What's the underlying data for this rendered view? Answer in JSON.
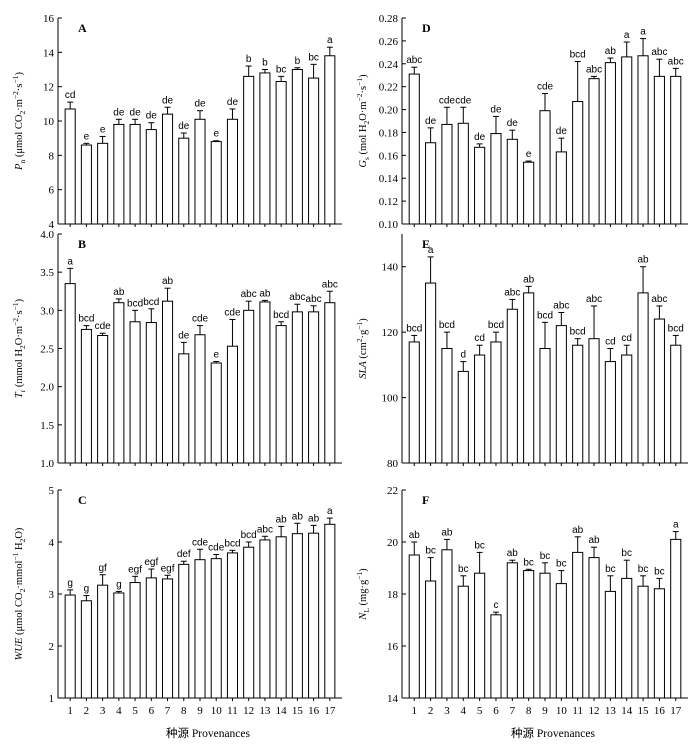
{
  "x_axis_label": "种源 Provenances",
  "chart_data": [
    {
      "id": "A",
      "panel_label": "A",
      "type": "bar",
      "ylabel": "P_n (μmol CO₂·m⁻²·s⁻¹)",
      "ylim": [
        4,
        16
      ],
      "yticks": [
        "4",
        "6",
        "8",
        "10",
        "12",
        "14",
        "16"
      ],
      "categories": [
        "1",
        "2",
        "3",
        "4",
        "5",
        "6",
        "7",
        "8",
        "9",
        "10",
        "11",
        "12",
        "13",
        "14",
        "15",
        "16",
        "17"
      ],
      "values": [
        10.7,
        8.6,
        8.7,
        9.8,
        9.8,
        9.5,
        10.4,
        9.0,
        10.1,
        8.8,
        10.1,
        12.6,
        12.8,
        12.3,
        13.0,
        12.5,
        13.8
      ],
      "errors": [
        0.4,
        0.1,
        0.4,
        0.3,
        0.3,
        0.4,
        0.4,
        0.3,
        0.5,
        0.05,
        0.6,
        0.6,
        0.2,
        0.3,
        0.1,
        0.8,
        0.5
      ],
      "letters": [
        "cd",
        "e",
        "e",
        "de",
        "de",
        "de",
        "de",
        "de",
        "de",
        "e",
        "de",
        "b",
        "b",
        "bc",
        "b",
        "bc",
        "a"
      ]
    },
    {
      "id": "B",
      "panel_label": "B",
      "type": "bar",
      "ylabel": "T_r (mmol H₂O·m⁻²·s⁻¹)",
      "ylim": [
        1.0,
        4.0
      ],
      "yticks": [
        "1.0",
        "1.5",
        "2.0",
        "2.5",
        "3.0",
        "3.5",
        "4.0"
      ],
      "categories": [
        "1",
        "2",
        "3",
        "4",
        "5",
        "6",
        "7",
        "8",
        "9",
        "10",
        "11",
        "12",
        "13",
        "14",
        "15",
        "16",
        "17"
      ],
      "values": [
        3.35,
        2.75,
        2.67,
        3.1,
        2.85,
        2.84,
        3.12,
        2.43,
        2.68,
        2.31,
        2.53,
        3.0,
        3.11,
        2.8,
        2.98,
        2.98,
        3.1
      ],
      "errors": [
        0.2,
        0.05,
        0.03,
        0.05,
        0.15,
        0.18,
        0.17,
        0.15,
        0.12,
        0.02,
        0.35,
        0.12,
        0.02,
        0.05,
        0.1,
        0.08,
        0.15
      ],
      "letters": [
        "a",
        "bcd",
        "cde",
        "ab",
        "bcd",
        "bcd",
        "ab",
        "de",
        "cde",
        "e",
        "cde",
        "abc",
        "ab",
        "bcd",
        "abc",
        "abc",
        "abc"
      ]
    },
    {
      "id": "C",
      "panel_label": "C",
      "type": "bar",
      "ylabel": "WUE (μmol CO₂·mmol⁻¹ H₂O)",
      "ylim": [
        1,
        5
      ],
      "yticks": [
        "1",
        "2",
        "3",
        "4",
        "5"
      ],
      "categories": [
        "1",
        "2",
        "3",
        "4",
        "5",
        "6",
        "7",
        "8",
        "9",
        "10",
        "11",
        "12",
        "13",
        "14",
        "15",
        "16",
        "17"
      ],
      "values": [
        2.98,
        2.87,
        3.17,
        3.02,
        3.22,
        3.31,
        3.29,
        3.57,
        3.66,
        3.68,
        3.79,
        3.9,
        4.04,
        4.1,
        4.16,
        4.17,
        4.34
      ],
      "errors": [
        0.1,
        0.1,
        0.2,
        0.03,
        0.12,
        0.17,
        0.07,
        0.06,
        0.2,
        0.08,
        0.05,
        0.1,
        0.07,
        0.2,
        0.2,
        0.15,
        0.12
      ],
      "letters": [
        "g",
        "g",
        "gf",
        "g",
        "egf",
        "egf",
        "egf",
        "def",
        "cde",
        "cde",
        "bcd",
        "bcd",
        "abc",
        "ab",
        "ab",
        "ab",
        "a"
      ]
    },
    {
      "id": "D",
      "panel_label": "D",
      "type": "bar",
      "ylabel": "G_s (mol H₂O·m⁻²·s⁻¹)",
      "ylim": [
        0.1,
        0.28
      ],
      "yticks": [
        "0.10",
        "0.12",
        "0.14",
        "0.16",
        "0.18",
        "0.20",
        "0.22",
        "0.24",
        "0.26",
        "0.28"
      ],
      "categories": [
        "1",
        "2",
        "3",
        "4",
        "5",
        "6",
        "7",
        "8",
        "9",
        "10",
        "11",
        "12",
        "13",
        "14",
        "15",
        "16",
        "17"
      ],
      "values": [
        0.231,
        0.171,
        0.187,
        0.188,
        0.167,
        0.179,
        0.174,
        0.154,
        0.199,
        0.163,
        0.207,
        0.227,
        0.241,
        0.246,
        0.247,
        0.229,
        0.229
      ],
      "errors": [
        0.006,
        0.013,
        0.015,
        0.014,
        0.003,
        0.015,
        0.008,
        0.001,
        0.015,
        0.012,
        0.035,
        0.002,
        0.004,
        0.013,
        0.015,
        0.015,
        0.007
      ],
      "letters": [
        "abc",
        "de",
        "cde",
        "cde",
        "de",
        "de",
        "de",
        "e",
        "cde",
        "de",
        "bcd",
        "abc",
        "ab",
        "a",
        "a",
        "abc",
        "abc"
      ]
    },
    {
      "id": "E",
      "panel_label": "E",
      "type": "bar",
      "ylabel": "SLA (cm²·g⁻¹)",
      "ylim": [
        80,
        150
      ],
      "yticks": [
        "80",
        "100",
        "120",
        "140"
      ],
      "categories": [
        "1",
        "2",
        "3",
        "4",
        "5",
        "6",
        "7",
        "8",
        "9",
        "10",
        "11",
        "12",
        "13",
        "14",
        "15",
        "16",
        "17"
      ],
      "values": [
        117,
        135,
        115,
        108,
        113,
        117,
        127,
        132,
        115,
        122,
        116,
        118,
        111,
        113,
        132,
        124,
        116
      ],
      "errors": [
        2,
        8,
        5,
        3,
        3,
        3,
        3,
        2,
        8,
        4,
        2,
        10,
        4,
        3,
        8,
        4,
        3
      ],
      "letters": [
        "bcd",
        "a",
        "bcd",
        "d",
        "cd",
        "bcd",
        "abc",
        "ab",
        "bcd",
        "abc",
        "bcd",
        "abc",
        "cd",
        "cd",
        "ab",
        "abc",
        "bcd"
      ]
    },
    {
      "id": "F",
      "panel_label": "F",
      "type": "bar",
      "ylabel": "N_L (mg·g⁻¹)",
      "ylim": [
        14,
        22
      ],
      "yticks": [
        "14",
        "16",
        "18",
        "20",
        "22"
      ],
      "categories": [
        "1",
        "2",
        "3",
        "4",
        "5",
        "6",
        "7",
        "8",
        "9",
        "10",
        "11",
        "12",
        "13",
        "14",
        "15",
        "16",
        "17"
      ],
      "values": [
        19.5,
        18.5,
        19.7,
        18.3,
        18.8,
        17.2,
        19.2,
        18.9,
        18.8,
        18.4,
        19.6,
        19.4,
        18.1,
        18.6,
        18.3,
        18.2,
        20.1
      ],
      "errors": [
        0.5,
        0.9,
        0.4,
        0.4,
        0.8,
        0.1,
        0.1,
        0.05,
        0.4,
        0.5,
        0.6,
        0.4,
        0.6,
        0.7,
        0.4,
        0.4,
        0.3
      ],
      "letters": [
        "ab",
        "bc",
        "ab",
        "bc",
        "bc",
        "c",
        "ab",
        "bc",
        "bc",
        "bc",
        "ab",
        "ab",
        "bc",
        "bc",
        "bc",
        "bc",
        "a"
      ]
    }
  ]
}
